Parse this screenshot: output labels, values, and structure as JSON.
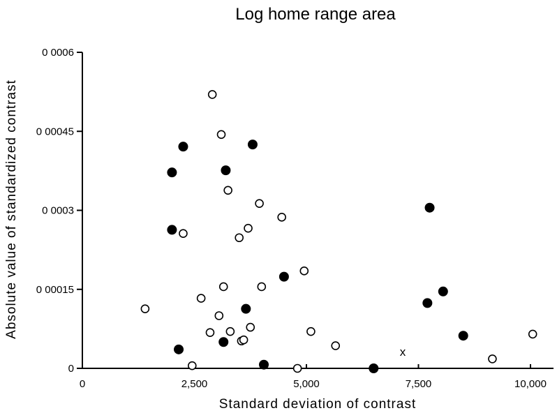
{
  "chart_data": {
    "type": "scatter",
    "title": "Log home range area",
    "xlabel": "Standard deviation of contrast",
    "ylabel": "Absolute value of standardized contrast",
    "xlim": [
      0,
      10500
    ],
    "ylim": [
      0,
      0.0006
    ],
    "x_ticks": [
      {
        "value": 0,
        "label": "0"
      },
      {
        "value": 2500,
        "label": "2,500"
      },
      {
        "value": 5000,
        "label": "5,000"
      },
      {
        "value": 7500,
        "label": "7,500"
      },
      {
        "value": 10000,
        "label": "10,000"
      }
    ],
    "y_ticks": [
      {
        "value": 0,
        "label": "0"
      },
      {
        "value": 0.00015,
        "label": "0 00015"
      },
      {
        "value": 0.0003,
        "label": "0 0003"
      },
      {
        "value": 0.00045,
        "label": "0 00045"
      },
      {
        "value": 0.0006,
        "label": "0 0006"
      }
    ],
    "grid": false,
    "legend": "none",
    "series": [
      {
        "marker": "open-circle",
        "points": [
          [
            1400,
            0.000113
          ],
          [
            2250,
            0.000256
          ],
          [
            2450,
            5e-06
          ],
          [
            2650,
            0.000133
          ],
          [
            2850,
            6.8e-05
          ],
          [
            2900,
            0.00052
          ],
          [
            3050,
            0.0001
          ],
          [
            3100,
            0.000444
          ],
          [
            3150,
            0.000155
          ],
          [
            3250,
            0.000338
          ],
          [
            3300,
            7e-05
          ],
          [
            3500,
            0.000248
          ],
          [
            3550,
            5.2e-05
          ],
          [
            3600,
            5.4e-05
          ],
          [
            3700,
            0.000266
          ],
          [
            3750,
            7.8e-05
          ],
          [
            3950,
            0.000313
          ],
          [
            4000,
            0.000155
          ],
          [
            4450,
            0.000287
          ],
          [
            4800,
            0.0
          ],
          [
            4950,
            0.000185
          ],
          [
            5100,
            7e-05
          ],
          [
            5650,
            4.3e-05
          ],
          [
            9150,
            1.8e-05
          ],
          [
            10050,
            6.5e-05
          ]
        ]
      },
      {
        "marker": "filled-circle",
        "points": [
          [
            2000,
            0.000372
          ],
          [
            2000,
            0.000263
          ],
          [
            2150,
            3.6e-05
          ],
          [
            2250,
            0.000421
          ],
          [
            3150,
            5e-05
          ],
          [
            3200,
            0.000376
          ],
          [
            3650,
            0.000113
          ],
          [
            3800,
            0.000425
          ],
          [
            4050,
            7e-06
          ],
          [
            4500,
            0.000174
          ],
          [
            6500,
            0.0
          ],
          [
            7700,
            0.000124
          ],
          [
            7750,
            0.000305
          ],
          [
            8050,
            0.000146
          ],
          [
            8500,
            6.2e-05
          ]
        ]
      },
      {
        "marker": "cross",
        "points": [
          [
            7150,
            3.2e-05
          ]
        ]
      }
    ],
    "cross_label": "x"
  }
}
